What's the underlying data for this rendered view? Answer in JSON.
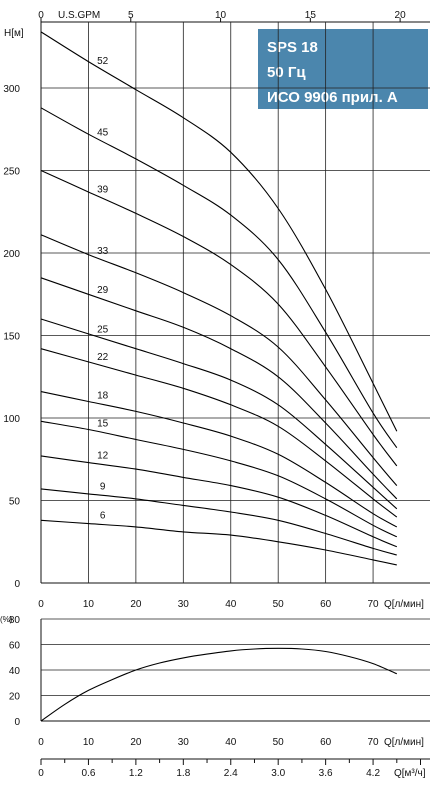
{
  "title_box": {
    "lines": [
      "SPS 18",
      "50 Гц",
      "ИСО 9906 прил. А"
    ],
    "color": "#4b86ad"
  },
  "chart_data": [
    {
      "type": "line",
      "ylabel": "H[м]",
      "top_axis_label": "U.S.GPM",
      "xlabel": "Q[л/мин]",
      "xlim": [
        0,
        82
      ],
      "ylim": [
        0,
        340
      ],
      "x_ticks": [
        0,
        10,
        20,
        30,
        40,
        50,
        60,
        70
      ],
      "y_ticks": [
        0,
        50,
        100,
        150,
        200,
        250,
        300
      ],
      "top_ticks": [
        0,
        5,
        10,
        15,
        20
      ],
      "grid": true,
      "series": [
        {
          "name": "52",
          "x": [
            0,
            10,
            20,
            30,
            40,
            50,
            60,
            70,
            75
          ],
          "y": [
            334,
            316,
            299,
            282,
            261,
            227,
            178,
            121,
            92
          ]
        },
        {
          "name": "45",
          "x": [
            0,
            10,
            20,
            30,
            40,
            50,
            60,
            70,
            75
          ],
          "y": [
            288,
            272,
            257,
            241,
            223,
            196,
            152,
            103,
            82
          ]
        },
        {
          "name": "39",
          "x": [
            0,
            10,
            20,
            30,
            40,
            50,
            60,
            70,
            75
          ],
          "y": [
            250,
            237,
            224,
            210,
            193,
            169,
            131,
            90,
            71
          ]
        },
        {
          "name": "33",
          "x": [
            0,
            10,
            20,
            30,
            40,
            50,
            60,
            70,
            75
          ],
          "y": [
            211,
            199,
            188,
            176,
            162,
            143,
            111,
            76,
            59
          ]
        },
        {
          "name": "29",
          "x": [
            0,
            10,
            20,
            30,
            40,
            50,
            60,
            70,
            75
          ],
          "y": [
            185,
            175,
            165,
            155,
            142,
            125,
            97,
            66,
            51
          ]
        },
        {
          "name": "25",
          "x": [
            0,
            10,
            20,
            30,
            40,
            50,
            60,
            70,
            75
          ],
          "y": [
            160,
            151,
            142,
            133,
            123,
            108,
            84,
            58,
            45
          ]
        },
        {
          "name": "22",
          "x": [
            0,
            10,
            20,
            30,
            40,
            50,
            60,
            70,
            75
          ],
          "y": [
            142,
            134,
            126,
            118,
            108,
            95,
            74,
            51,
            40
          ]
        },
        {
          "name": "18",
          "x": [
            0,
            10,
            20,
            30,
            40,
            50,
            60,
            70,
            75
          ],
          "y": [
            116,
            110,
            104,
            97,
            89,
            78,
            61,
            42,
            34
          ]
        },
        {
          "name": "15",
          "x": [
            0,
            10,
            20,
            30,
            40,
            50,
            60,
            70,
            75
          ],
          "y": [
            98,
            93,
            87,
            81,
            74,
            65,
            51,
            35,
            28
          ]
        },
        {
          "name": "12",
          "x": [
            0,
            10,
            20,
            30,
            40,
            50,
            60,
            70,
            75
          ],
          "y": [
            77,
            73,
            69,
            64,
            59,
            52,
            41,
            28,
            22
          ]
        },
        {
          "name": "9",
          "x": [
            0,
            10,
            20,
            30,
            40,
            50,
            60,
            70,
            75
          ],
          "y": [
            57,
            54,
            51,
            47,
            43,
            38,
            30,
            21,
            17
          ]
        },
        {
          "name": "6",
          "x": [
            0,
            10,
            20,
            30,
            40,
            50,
            60,
            70,
            75
          ],
          "y": [
            38,
            36,
            34,
            31,
            29,
            25,
            20,
            14,
            11
          ]
        }
      ]
    },
    {
      "type": "line",
      "ylabel": "(%)",
      "xlabel": "Q[л/мин]",
      "bottom_axis_label": "Q[м³/ч]",
      "xlim": [
        0,
        82
      ],
      "ylim": [
        0,
        80
      ],
      "x_ticks": [
        0,
        10,
        20,
        30,
        40,
        50,
        60,
        70
      ],
      "y_ticks": [
        0,
        20,
        40,
        60,
        80
      ],
      "m3h_ticks": [
        "0",
        "0.6",
        "1.2",
        "1.8",
        "2.4",
        "3.0",
        "3.6",
        "4.2"
      ],
      "grid": true,
      "series": [
        {
          "x": [
            0,
            5,
            10,
            15,
            20,
            25,
            30,
            35,
            40,
            45,
            50,
            55,
            60,
            65,
            70,
            75
          ],
          "y": [
            0,
            13,
            24,
            32.5,
            40,
            45.5,
            49.5,
            52.5,
            55,
            56.5,
            57,
            56.5,
            54.5,
            50.5,
            45,
            37
          ]
        }
      ]
    }
  ]
}
